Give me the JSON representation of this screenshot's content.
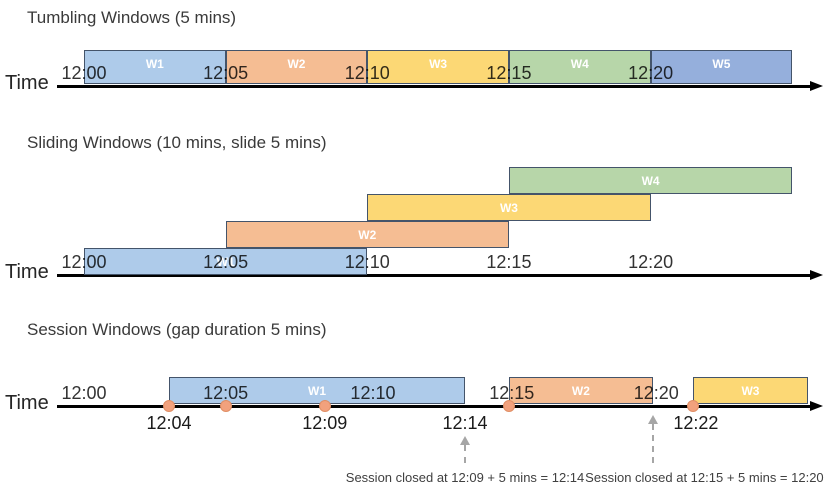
{
  "diagram": {
    "colors": {
      "blue": "#aecbea",
      "blue_dark": "#95afdc",
      "orange": "#f5bd93",
      "yellow": "#fcd875",
      "green": "#b7d6a9",
      "box_border": "#44546a",
      "dot_fill": "#f2a17d",
      "dot_border": "#e08e64",
      "axis": "#000000",
      "dashed_arrow": "#a6a6a6"
    },
    "charts": [
      {
        "id": "tumbling",
        "title": "Tumbling Windows (5 mins)",
        "time_label": "Time",
        "ticks": [
          {
            "label": "12:00",
            "min": 0
          },
          {
            "label": "12:05",
            "min": 5
          },
          {
            "label": "12:10",
            "min": 10
          },
          {
            "label": "12:15",
            "min": 15
          },
          {
            "label": "12:20",
            "min": 20
          }
        ],
        "windows": [
          {
            "label": "W1",
            "start_min": 0,
            "end_min": 5,
            "color": "blue",
            "row": 0
          },
          {
            "label": "W2",
            "start_min": 5,
            "end_min": 10,
            "color": "orange",
            "row": 0
          },
          {
            "label": "W3",
            "start_min": 10,
            "end_min": 15,
            "color": "yellow",
            "row": 0
          },
          {
            "label": "W4",
            "start_min": 15,
            "end_min": 20,
            "color": "green",
            "row": 0
          },
          {
            "label": "W5",
            "start_min": 20,
            "end_min": 25,
            "color": "blue_dark",
            "row": 0
          }
        ],
        "dots": [],
        "event_labels": [],
        "callouts": []
      },
      {
        "id": "sliding",
        "title": "Sliding Windows (10 mins, slide 5 mins)",
        "time_label": "Time",
        "ticks": [
          {
            "label": "12:00",
            "min": 0
          },
          {
            "label": "12:05",
            "min": 5
          },
          {
            "label": "12:10",
            "min": 10
          },
          {
            "label": "12:15",
            "min": 15
          },
          {
            "label": "12:20",
            "min": 20
          }
        ],
        "windows": [
          {
            "label": "W1",
            "start_min": 0,
            "end_min": 10,
            "color": "blue",
            "row": 0
          },
          {
            "label": "W2",
            "start_min": 5,
            "end_min": 15,
            "color": "orange",
            "row": 1
          },
          {
            "label": "W3",
            "start_min": 10,
            "end_min": 20,
            "color": "yellow",
            "row": 2
          },
          {
            "label": "W4",
            "start_min": 15,
            "end_min": 25,
            "color": "green",
            "row": 3
          }
        ],
        "dots": [],
        "event_labels": [],
        "callouts": []
      },
      {
        "id": "session",
        "title": "Session Windows (gap duration 5 mins)",
        "time_label": "Time",
        "ticks": [
          {
            "label": "12:00",
            "min": 0
          },
          {
            "label": "12:05",
            "min": 5
          },
          {
            "label": "12:10",
            "min": 10.2
          },
          {
            "label": "12:15",
            "min": 15.1
          },
          {
            "label": "12:20",
            "min": 20.2
          }
        ],
        "windows": [
          {
            "label": "W1",
            "start_min": 3.0,
            "end_min": 13.45,
            "color": "blue",
            "row": 0
          },
          {
            "label": "W2",
            "start_min": 15.0,
            "end_min": 20.08,
            "color": "orange",
            "row": 0
          },
          {
            "label": "W3",
            "start_min": 21.5,
            "end_min": 25.55,
            "color": "yellow",
            "row": 0
          }
        ],
        "dots": [
          {
            "min": 3.0
          },
          {
            "min": 5.0
          },
          {
            "min": 8.5
          },
          {
            "min": 15.0
          },
          {
            "min": 21.5
          }
        ],
        "event_labels": [
          {
            "label": "12:04",
            "min": 3.0
          },
          {
            "label": "12:09",
            "min": 8.5
          },
          {
            "label": "12:14",
            "min": 13.45
          },
          {
            "label": "12:22",
            "min": 21.6
          }
        ],
        "callouts": [
          {
            "text": "Session closed at 12:09 + 5 mins = 12:14",
            "arrow_min": 13.45,
            "arrow_style": "short",
            "text_center_min": 13.45
          },
          {
            "text": "Session closed at 12:15 + 5 mins = 12:20",
            "arrow_min": 20.08,
            "arrow_style": "long",
            "text_center_min": 21.9
          }
        ]
      }
    ]
  }
}
